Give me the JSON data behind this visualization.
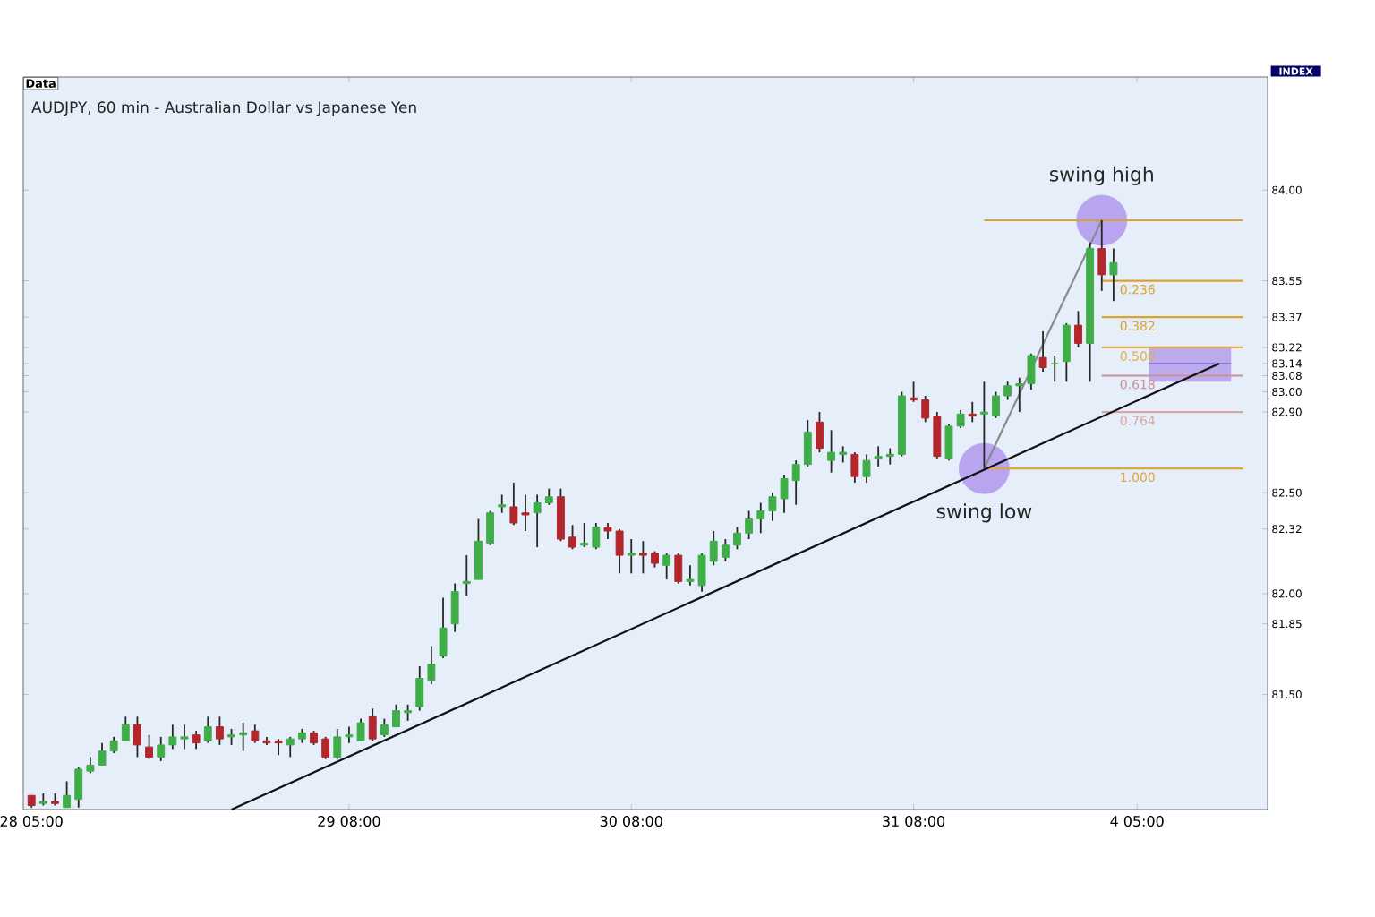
{
  "chart_data": {
    "type": "candlestick",
    "title": "AUDJPY, 60 min - Australian Dollar vs Japanese Yen",
    "annotations": [
      "Data",
      "INDEX",
      {
        "text": "swing high",
        "y": 83.85
      },
      {
        "text": "swing low",
        "y": 82.62
      }
    ],
    "categories": [
      "28 05:00",
      null,
      null,
      null,
      null,
      null,
      null,
      null,
      null,
      null,
      null,
      null,
      null,
      null,
      null,
      null,
      null,
      null,
      null,
      null,
      null,
      null,
      null,
      null,
      null,
      null,
      null,
      "29 08:00",
      null,
      null,
      null,
      null,
      null,
      null,
      null,
      null,
      null,
      null,
      null,
      null,
      null,
      null,
      null,
      null,
      null,
      null,
      null,
      null,
      null,
      null,
      null,
      "30 08:00",
      null,
      null,
      null,
      null,
      null,
      null,
      null,
      null,
      null,
      null,
      null,
      null,
      null,
      null,
      null,
      null,
      null,
      null,
      null,
      null,
      null,
      null,
      null,
      "31 08:00",
      null,
      null,
      null,
      null,
      null,
      null,
      null,
      null,
      null,
      null,
      null,
      null,
      null,
      null,
      null,
      null,
      null,
      null,
      "4 05:00",
      null,
      null,
      null,
      null,
      null,
      null,
      null,
      null,
      null,
      null,
      null
    ],
    "ohlc": [
      [
        81.0,
        81.0,
        80.94,
        80.95
      ],
      [
        80.96,
        81.01,
        80.95,
        80.97
      ],
      [
        80.97,
        81.01,
        80.95,
        80.96
      ],
      [
        80.94,
        81.07,
        80.94,
        81.0
      ],
      [
        80.98,
        81.14,
        80.94,
        81.13
      ],
      [
        81.12,
        81.19,
        81.11,
        81.15
      ],
      [
        81.15,
        81.26,
        81.15,
        81.22
      ],
      [
        81.22,
        81.29,
        81.21,
        81.27
      ],
      [
        81.27,
        81.39,
        81.27,
        81.35
      ],
      [
        81.35,
        81.39,
        81.19,
        81.25
      ],
      [
        81.24,
        81.3,
        81.18,
        81.19
      ],
      [
        81.19,
        81.29,
        81.17,
        81.25
      ],
      [
        81.25,
        81.35,
        81.23,
        81.29
      ],
      [
        81.28,
        81.35,
        81.23,
        81.29
      ],
      [
        81.3,
        81.32,
        81.23,
        81.26
      ],
      [
        81.27,
        81.39,
        81.26,
        81.34
      ],
      [
        81.34,
        81.39,
        81.25,
        81.28
      ],
      [
        81.29,
        81.33,
        81.25,
        81.3
      ],
      [
        81.3,
        81.36,
        81.22,
        81.31
      ],
      [
        81.32,
        81.35,
        81.26,
        81.27
      ],
      [
        81.27,
        81.29,
        81.25,
        81.26
      ],
      [
        81.27,
        81.28,
        81.2,
        81.26
      ],
      [
        81.25,
        81.29,
        81.19,
        81.28
      ],
      [
        81.28,
        81.33,
        81.26,
        81.31
      ],
      [
        81.31,
        81.32,
        81.25,
        81.26
      ],
      [
        81.28,
        81.29,
        81.18,
        81.19
      ],
      [
        81.19,
        81.33,
        81.18,
        81.29
      ],
      [
        81.29,
        81.34,
        81.26,
        81.3
      ],
      [
        81.27,
        81.38,
        81.27,
        81.36
      ],
      [
        81.39,
        81.43,
        81.27,
        81.28
      ],
      [
        81.3,
        81.38,
        81.29,
        81.35
      ],
      [
        81.34,
        81.45,
        81.34,
        81.42
      ],
      [
        81.41,
        81.45,
        81.37,
        81.42
      ],
      [
        81.44,
        81.64,
        81.42,
        81.58
      ],
      [
        81.57,
        81.74,
        81.55,
        81.65
      ],
      [
        81.69,
        81.98,
        81.68,
        81.83
      ],
      [
        81.85,
        82.05,
        81.81,
        82.01
      ],
      [
        82.05,
        82.19,
        81.99,
        82.06
      ],
      [
        82.07,
        82.37,
        82.07,
        82.26
      ],
      [
        82.25,
        82.41,
        82.24,
        82.4
      ],
      [
        82.43,
        82.49,
        82.4,
        82.44
      ],
      [
        82.43,
        82.55,
        82.34,
        82.35
      ],
      [
        82.4,
        82.49,
        82.31,
        82.39
      ],
      [
        82.4,
        82.49,
        82.23,
        82.45
      ],
      [
        82.45,
        82.52,
        82.44,
        82.48
      ],
      [
        82.48,
        82.52,
        82.26,
        82.27
      ],
      [
        82.28,
        82.34,
        82.22,
        82.23
      ],
      [
        82.24,
        82.35,
        82.23,
        82.25
      ],
      [
        82.23,
        82.35,
        82.22,
        82.33
      ],
      [
        82.33,
        82.35,
        82.27,
        82.31
      ],
      [
        82.31,
        82.32,
        82.1,
        82.19
      ],
      [
        82.19,
        82.27,
        82.1,
        82.2
      ],
      [
        82.2,
        82.26,
        82.1,
        82.19
      ],
      [
        82.2,
        82.21,
        82.13,
        82.15
      ],
      [
        82.14,
        82.2,
        82.07,
        82.19
      ],
      [
        82.19,
        82.2,
        82.05,
        82.06
      ],
      [
        82.06,
        82.14,
        82.04,
        82.07
      ],
      [
        82.04,
        82.2,
        82.01,
        82.19
      ],
      [
        82.16,
        82.31,
        82.14,
        82.26
      ],
      [
        82.18,
        82.27,
        82.16,
        82.24
      ],
      [
        82.24,
        82.33,
        82.22,
        82.3
      ],
      [
        82.3,
        82.41,
        82.27,
        82.37
      ],
      [
        82.37,
        82.45,
        82.3,
        82.41
      ],
      [
        82.41,
        82.5,
        82.36,
        82.48
      ],
      [
        82.47,
        82.59,
        82.4,
        82.57
      ],
      [
        82.56,
        82.66,
        82.44,
        82.64
      ],
      [
        82.64,
        82.86,
        82.63,
        82.8
      ],
      [
        82.85,
        82.9,
        82.7,
        82.72
      ],
      [
        82.66,
        82.81,
        82.6,
        82.7
      ],
      [
        82.69,
        82.73,
        82.65,
        82.7
      ],
      [
        82.69,
        82.7,
        82.55,
        82.58
      ],
      [
        82.58,
        82.69,
        82.55,
        82.66
      ],
      [
        82.67,
        82.73,
        82.63,
        82.68
      ],
      [
        82.68,
        82.72,
        82.64,
        82.69
      ],
      [
        82.69,
        83.0,
        82.68,
        82.98
      ],
      [
        82.97,
        83.05,
        82.95,
        82.96
      ],
      [
        82.96,
        82.98,
        82.85,
        82.87
      ],
      [
        82.88,
        82.9,
        82.67,
        82.68
      ],
      [
        82.67,
        82.84,
        82.66,
        82.83
      ],
      [
        82.83,
        82.91,
        82.82,
        82.89
      ],
      [
        82.89,
        82.95,
        82.85,
        82.88
      ],
      [
        82.89,
        83.05,
        82.62,
        82.9
      ],
      [
        82.88,
        83.0,
        82.87,
        82.98
      ],
      [
        82.98,
        83.05,
        82.96,
        83.03
      ],
      [
        83.03,
        83.07,
        82.9,
        83.04
      ],
      [
        83.04,
        83.19,
        83.01,
        83.18
      ],
      [
        83.17,
        83.3,
        83.1,
        83.12
      ],
      [
        83.14,
        83.18,
        83.05,
        83.14
      ],
      [
        83.15,
        83.34,
        83.05,
        83.33
      ],
      [
        83.33,
        83.4,
        83.22,
        83.24
      ],
      [
        83.24,
        83.74,
        83.05,
        83.71
      ],
      [
        83.71,
        83.85,
        83.5,
        83.58
      ],
      [
        83.58,
        83.71,
        83.45,
        83.64
      ],
      null,
      null,
      null,
      null,
      null,
      null,
      null,
      null,
      null,
      null,
      null,
      null,
      null
    ],
    "colors": [
      "#b3262b",
      "#3fae49",
      "#b3262b",
      "#3fae49",
      "#3fae49",
      "#3fae49",
      "#3fae49",
      "#3fae49",
      "#3fae49",
      "#b3262b",
      "#b3262b",
      "#3fae49",
      "#3fae49",
      "#3fae49",
      "#b3262b",
      "#3fae49",
      "#b3262b",
      "#3fae49",
      "#3fae49",
      "#b3262b",
      "#b3262b",
      "#b3262b",
      "#3fae49",
      "#3fae49",
      "#b3262b",
      "#b3262b",
      "#3fae49",
      "#3fae49",
      "#3fae49",
      "#b3262b",
      "#3fae49",
      "#3fae49",
      "#3fae49",
      "#3fae49",
      "#3fae49",
      "#3fae49",
      "#3fae49",
      "#3fae49",
      "#3fae49",
      "#3fae49",
      "#3fae49",
      "#b3262b",
      "#b3262b",
      "#3fae49",
      "#3fae49",
      "#b3262b",
      "#b3262b",
      "#3fae49",
      "#3fae49",
      "#b3262b",
      "#b3262b",
      "#3fae49",
      "#b3262b",
      "#b3262b",
      "#3fae49",
      "#b3262b",
      "#3fae49",
      "#3fae49",
      "#3fae49",
      "#3fae49",
      "#3fae49",
      "#3fae49",
      "#3fae49",
      "#3fae49",
      "#3fae49",
      "#3fae49",
      "#3fae49",
      "#b3262b",
      "#3fae49",
      "#3fae49",
      "#b3262b",
      "#3fae49",
      "#3fae49",
      "#3fae49",
      "#3fae49",
      "#b3262b",
      "#b3262b",
      "#b3262b",
      "#3fae49",
      "#3fae49",
      "#b3262b",
      "#3fae49",
      "#3fae49",
      "#3fae49",
      "#3fae49",
      "#3fae49",
      "#b3262b",
      "#3fae49",
      "#3fae49",
      "#b3262b",
      "#3fae49",
      "#b3262b",
      "#3fae49",
      null,
      null,
      null,
      null,
      null,
      null,
      null,
      null,
      null,
      null,
      null,
      null,
      null
    ],
    "series": [
      {
        "type": "line",
        "color": "#8f73e0",
        "values": [
          null,
          null,
          null,
          null,
          null,
          null,
          null,
          null,
          null,
          null,
          null,
          null,
          null,
          null,
          null,
          null,
          null,
          null,
          null,
          null,
          null,
          null,
          null,
          null,
          null,
          null,
          null,
          null,
          null,
          null,
          null,
          null,
          null,
          null,
          null,
          null,
          null,
          null,
          null,
          null,
          null,
          null,
          null,
          null,
          null,
          null,
          null,
          null,
          null,
          null,
          null,
          null,
          null,
          null,
          null,
          null,
          null,
          null,
          null,
          null,
          null,
          null,
          null,
          null,
          null,
          null,
          null,
          null,
          null,
          null,
          null,
          null,
          null,
          null,
          null,
          null,
          null,
          null,
          null,
          null,
          null,
          null,
          null,
          null,
          null,
          null,
          null,
          null,
          null,
          null,
          null,
          null,
          null,
          null,
          null,
          83.14,
          83.14,
          83.14,
          83.14,
          83.14,
          83.14,
          83.14,
          83.14,
          null,
          null,
          null
        ],
        "lower": [
          null,
          null,
          null,
          null,
          null,
          null,
          null,
          null,
          null,
          null,
          null,
          null,
          null,
          null,
          null,
          null,
          null,
          null,
          null,
          null,
          null,
          null,
          null,
          null,
          null,
          null,
          null,
          null,
          null,
          null,
          null,
          null,
          null,
          null,
          null,
          null,
          null,
          null,
          null,
          null,
          null,
          null,
          null,
          null,
          null,
          null,
          null,
          null,
          null,
          null,
          null,
          null,
          null,
          null,
          null,
          null,
          null,
          null,
          null,
          null,
          null,
          null,
          null,
          null,
          null,
          null,
          null,
          null,
          null,
          null,
          null,
          null,
          null,
          null,
          null,
          null,
          null,
          null,
          null,
          null,
          null,
          null,
          null,
          null,
          null,
          null,
          null,
          null,
          null,
          null,
          null,
          null,
          null,
          null,
          null,
          83.05,
          83.05,
          83.05,
          83.05,
          83.05,
          83.05,
          83.05,
          83.05,
          null,
          null,
          null
        ],
        "upper": [
          null,
          null,
          null,
          null,
          null,
          null,
          null,
          null,
          null,
          null,
          null,
          null,
          null,
          null,
          null,
          null,
          null,
          null,
          null,
          null,
          null,
          null,
          null,
          null,
          null,
          null,
          null,
          null,
          null,
          null,
          null,
          null,
          null,
          null,
          null,
          null,
          null,
          null,
          null,
          null,
          null,
          null,
          null,
          null,
          null,
          null,
          null,
          null,
          null,
          null,
          null,
          null,
          null,
          null,
          null,
          null,
          null,
          null,
          null,
          null,
          null,
          null,
          null,
          null,
          null,
          null,
          null,
          null,
          null,
          null,
          null,
          null,
          null,
          null,
          null,
          null,
          null,
          null,
          null,
          null,
          null,
          null,
          null,
          null,
          null,
          null,
          null,
          null,
          null,
          null,
          null,
          null,
          null,
          null,
          null,
          83.22,
          83.22,
          83.22,
          83.22,
          83.22,
          83.22,
          83.22,
          83.22,
          null,
          null,
          null
        ]
      },
      {
        "type": "scatter",
        "marker": "circle",
        "color": "#b9a4f0",
        "values": [
          null,
          null,
          null,
          null,
          null,
          null,
          null,
          null,
          null,
          null,
          null,
          null,
          null,
          null,
          null,
          null,
          null,
          null,
          null,
          null,
          null,
          null,
          null,
          null,
          null,
          null,
          null,
          null,
          null,
          null,
          null,
          null,
          null,
          null,
          null,
          null,
          null,
          null,
          null,
          null,
          null,
          null,
          null,
          null,
          null,
          null,
          null,
          null,
          null,
          null,
          null,
          null,
          null,
          null,
          null,
          null,
          null,
          null,
          null,
          null,
          null,
          null,
          null,
          null,
          null,
          null,
          null,
          null,
          null,
          null,
          null,
          null,
          null,
          null,
          null,
          null,
          null,
          null,
          null,
          null,
          null,
          82.62,
          null,
          null,
          null,
          null,
          null,
          null,
          null,
          null,
          null,
          83.85,
          null,
          null,
          null,
          null,
          null,
          null,
          null,
          null,
          null,
          null,
          null,
          null,
          null,
          null
        ]
      },
      {
        "type": "line",
        "color": "#d9a32e",
        "values": [
          null,
          null,
          null,
          null,
          null,
          null,
          null,
          null,
          null,
          null,
          null,
          null,
          null,
          null,
          null,
          null,
          null,
          null,
          null,
          null,
          null,
          null,
          null,
          null,
          null,
          null,
          null,
          null,
          null,
          null,
          null,
          null,
          null,
          null,
          null,
          null,
          null,
          null,
          null,
          null,
          null,
          null,
          null,
          null,
          null,
          null,
          null,
          null,
          null,
          null,
          null,
          null,
          null,
          null,
          null,
          null,
          null,
          null,
          null,
          null,
          null,
          null,
          null,
          null,
          null,
          null,
          null,
          null,
          null,
          null,
          null,
          null,
          null,
          null,
          null,
          null,
          null,
          null,
          null,
          null,
          null,
          83.85,
          83.85,
          83.85,
          83.85,
          83.85,
          83.85,
          83.85,
          83.85,
          83.85,
          83.85,
          83.85,
          83.85,
          83.85,
          83.85,
          83.85,
          83.85,
          83.85,
          83.85,
          83.85,
          83.85,
          83.85,
          83.85,
          83.85,
          null,
          null
        ]
      },
      {
        "type": "line",
        "name": "0.236",
        "color": "#d9a32e",
        "values": [
          null,
          null,
          null,
          null,
          null,
          null,
          null,
          null,
          null,
          null,
          null,
          null,
          null,
          null,
          null,
          null,
          null,
          null,
          null,
          null,
          null,
          null,
          null,
          null,
          null,
          null,
          null,
          null,
          null,
          null,
          null,
          null,
          null,
          null,
          null,
          null,
          null,
          null,
          null,
          null,
          null,
          null,
          null,
          null,
          null,
          null,
          null,
          null,
          null,
          null,
          null,
          null,
          null,
          null,
          null,
          null,
          null,
          null,
          null,
          null,
          null,
          null,
          null,
          null,
          null,
          null,
          null,
          null,
          null,
          null,
          null,
          null,
          null,
          null,
          null,
          null,
          null,
          null,
          null,
          null,
          null,
          null,
          null,
          null,
          null,
          null,
          null,
          null,
          null,
          null,
          null,
          83.55,
          83.55,
          83.55,
          83.55,
          83.55,
          83.55,
          83.55,
          83.55,
          83.55,
          83.55,
          83.55,
          83.55,
          83.55,
          null,
          null
        ]
      },
      {
        "type": "line",
        "name": "0.382",
        "color": "#d9a32e",
        "values": [
          null,
          null,
          null,
          null,
          null,
          null,
          null,
          null,
          null,
          null,
          null,
          null,
          null,
          null,
          null,
          null,
          null,
          null,
          null,
          null,
          null,
          null,
          null,
          null,
          null,
          null,
          null,
          null,
          null,
          null,
          null,
          null,
          null,
          null,
          null,
          null,
          null,
          null,
          null,
          null,
          null,
          null,
          null,
          null,
          null,
          null,
          null,
          null,
          null,
          null,
          null,
          null,
          null,
          null,
          null,
          null,
          null,
          null,
          null,
          null,
          null,
          null,
          null,
          null,
          null,
          null,
          null,
          null,
          null,
          null,
          null,
          null,
          null,
          null,
          null,
          null,
          null,
          null,
          null,
          null,
          null,
          null,
          null,
          null,
          null,
          null,
          null,
          null,
          null,
          null,
          null,
          83.37,
          83.37,
          83.37,
          83.37,
          83.37,
          83.37,
          83.37,
          83.37,
          83.37,
          83.37,
          83.37,
          83.37,
          83.37,
          null,
          null
        ]
      },
      {
        "type": "line",
        "name": "0.500",
        "color": "#e0b040",
        "values": [
          null,
          null,
          null,
          null,
          null,
          null,
          null,
          null,
          null,
          null,
          null,
          null,
          null,
          null,
          null,
          null,
          null,
          null,
          null,
          null,
          null,
          null,
          null,
          null,
          null,
          null,
          null,
          null,
          null,
          null,
          null,
          null,
          null,
          null,
          null,
          null,
          null,
          null,
          null,
          null,
          null,
          null,
          null,
          null,
          null,
          null,
          null,
          null,
          null,
          null,
          null,
          null,
          null,
          null,
          null,
          null,
          null,
          null,
          null,
          null,
          null,
          null,
          null,
          null,
          null,
          null,
          null,
          null,
          null,
          null,
          null,
          null,
          null,
          null,
          null,
          null,
          null,
          null,
          null,
          null,
          null,
          null,
          null,
          null,
          null,
          null,
          null,
          null,
          null,
          null,
          null,
          83.22,
          83.22,
          83.22,
          83.22,
          83.22,
          83.22,
          83.22,
          83.22,
          83.22,
          83.22,
          83.22,
          83.22,
          83.22,
          null,
          null
        ]
      },
      {
        "type": "line",
        "name": "0.618",
        "color": "#cf8f9a",
        "values": [
          null,
          null,
          null,
          null,
          null,
          null,
          null,
          null,
          null,
          null,
          null,
          null,
          null,
          null,
          null,
          null,
          null,
          null,
          null,
          null,
          null,
          null,
          null,
          null,
          null,
          null,
          null,
          null,
          null,
          null,
          null,
          null,
          null,
          null,
          null,
          null,
          null,
          null,
          null,
          null,
          null,
          null,
          null,
          null,
          null,
          null,
          null,
          null,
          null,
          null,
          null,
          null,
          null,
          null,
          null,
          null,
          null,
          null,
          null,
          null,
          null,
          null,
          null,
          null,
          null,
          null,
          null,
          null,
          null,
          null,
          null,
          null,
          null,
          null,
          null,
          null,
          null,
          null,
          null,
          null,
          null,
          null,
          null,
          null,
          null,
          null,
          null,
          null,
          null,
          null,
          null,
          83.08,
          83.08,
          83.08,
          83.08,
          83.08,
          83.08,
          83.08,
          83.08,
          83.08,
          83.08,
          83.08,
          83.08,
          83.08,
          null,
          null
        ]
      },
      {
        "type": "line",
        "name": "0.764",
        "color": "#d8a6a0",
        "values": [
          null,
          null,
          null,
          null,
          null,
          null,
          null,
          null,
          null,
          null,
          null,
          null,
          null,
          null,
          null,
          null,
          null,
          null,
          null,
          null,
          null,
          null,
          null,
          null,
          null,
          null,
          null,
          null,
          null,
          null,
          null,
          null,
          null,
          null,
          null,
          null,
          null,
          null,
          null,
          null,
          null,
          null,
          null,
          null,
          null,
          null,
          null,
          null,
          null,
          null,
          null,
          null,
          null,
          null,
          null,
          null,
          null,
          null,
          null,
          null,
          null,
          null,
          null,
          null,
          null,
          null,
          null,
          null,
          null,
          null,
          null,
          null,
          null,
          null,
          null,
          null,
          null,
          null,
          null,
          null,
          null,
          null,
          null,
          null,
          null,
          null,
          null,
          null,
          null,
          null,
          null,
          82.9,
          82.9,
          82.9,
          82.9,
          82.9,
          82.9,
          82.9,
          82.9,
          82.9,
          82.9,
          82.9,
          82.9,
          82.9,
          null,
          null
        ]
      },
      {
        "type": "line",
        "name": "1.000",
        "color": "#e0a640",
        "values": [
          null,
          null,
          null,
          null,
          null,
          null,
          null,
          null,
          null,
          null,
          null,
          null,
          null,
          null,
          null,
          null,
          null,
          null,
          null,
          null,
          null,
          null,
          null,
          null,
          null,
          null,
          null,
          null,
          null,
          null,
          null,
          null,
          null,
          null,
          null,
          null,
          null,
          null,
          null,
          null,
          null,
          null,
          null,
          null,
          null,
          null,
          null,
          null,
          null,
          null,
          null,
          null,
          null,
          null,
          null,
          null,
          null,
          null,
          null,
          null,
          null,
          null,
          null,
          null,
          null,
          null,
          null,
          null,
          null,
          null,
          null,
          null,
          null,
          null,
          null,
          null,
          null,
          null,
          null,
          null,
          null,
          82.62,
          82.62,
          82.62,
          82.62,
          82.62,
          82.62,
          82.62,
          82.62,
          82.62,
          82.62,
          82.62,
          82.62,
          82.62,
          82.62,
          82.62,
          82.62,
          82.62,
          82.62,
          82.62,
          82.62,
          82.62,
          82.62,
          82.62,
          null,
          null
        ]
      },
      {
        "type": "line",
        "color": "#8a8a8a",
        "values": [
          null,
          null,
          null,
          null,
          null,
          null,
          null,
          null,
          null,
          null,
          null,
          null,
          null,
          null,
          null,
          null,
          null,
          null,
          null,
          null,
          null,
          null,
          null,
          null,
          null,
          null,
          null,
          null,
          null,
          null,
          null,
          null,
          null,
          null,
          null,
          null,
          null,
          null,
          null,
          null,
          null,
          null,
          null,
          null,
          null,
          null,
          null,
          null,
          null,
          null,
          null,
          null,
          null,
          null,
          null,
          null,
          null,
          null,
          null,
          null,
          null,
          null,
          null,
          null,
          null,
          null,
          null,
          null,
          null,
          null,
          null,
          null,
          null,
          null,
          null,
          null,
          null,
          null,
          null,
          null,
          null,
          82.62,
          null,
          null,
          null,
          null,
          null,
          null,
          null,
          null,
          null,
          83.85,
          null,
          null,
          null,
          null,
          null,
          null,
          null,
          null,
          null,
          null,
          null,
          null,
          null,
          null
        ]
      },
      {
        "type": "line",
        "color": "#111111",
        "values": [
          null,
          null,
          null,
          null,
          null,
          null,
          null,
          null,
          null,
          null,
          null,
          null,
          null,
          null,
          null,
          null,
          null,
          80.93,
          null,
          null,
          null,
          null,
          null,
          null,
          null,
          null,
          null,
          null,
          null,
          null,
          null,
          null,
          null,
          null,
          null,
          null,
          null,
          null,
          null,
          null,
          null,
          null,
          null,
          null,
          null,
          null,
          null,
          null,
          null,
          null,
          null,
          null,
          null,
          null,
          null,
          null,
          null,
          null,
          null,
          null,
          null,
          null,
          null,
          null,
          null,
          null,
          null,
          null,
          null,
          null,
          null,
          null,
          null,
          null,
          null,
          null,
          null,
          null,
          null,
          null,
          null,
          null,
          null,
          null,
          null,
          null,
          null,
          null,
          null,
          null,
          null,
          null,
          null,
          null,
          null,
          null,
          null,
          null,
          null,
          null,
          null,
          83.14,
          null,
          null,
          null,
          null
        ]
      }
    ],
    "ylim": [
      80.93,
      84.56
    ],
    "yticks": [
      {
        "value": 81.5,
        "label": "81.50"
      },
      {
        "value": 81.85,
        "label": "81.85"
      },
      {
        "value": 82.0,
        "label": "82.00"
      },
      {
        "value": 82.32,
        "label": "82.32"
      },
      {
        "value": 82.5,
        "label": "82.50"
      },
      {
        "value": 82.9,
        "label": "82.90"
      },
      {
        "value": 83.0,
        "label": "83.00"
      },
      {
        "value": 83.08,
        "label": "83.08"
      },
      {
        "value": 83.14,
        "label": "83.14"
      },
      {
        "value": 83.22,
        "label": "83.22"
      },
      {
        "value": 83.37,
        "label": "83.37"
      },
      {
        "value": 83.55,
        "label": "83.55"
      },
      {
        "value": 84.0,
        "label": "84.00"
      }
    ]
  }
}
